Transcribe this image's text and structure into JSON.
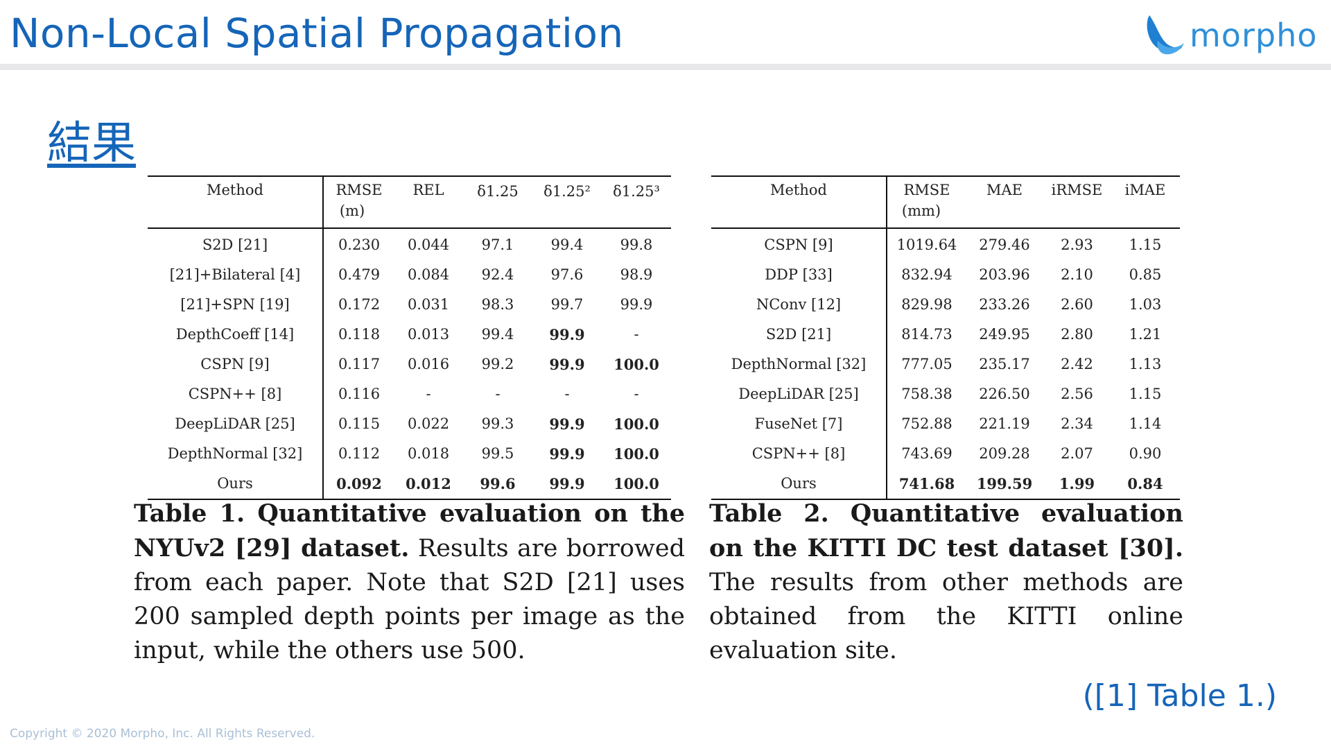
{
  "slide": {
    "title": "Non-Local Spatial Propagation",
    "logo_text": "morpho",
    "section_heading": "結果",
    "reference": "([1] Table 1.)",
    "copyright": "Copyright © 2020 Morpho, Inc. All Rights Reserved."
  },
  "colors": {
    "title": "#1565b8",
    "logo": "#2f8fd8",
    "rule": "#e8e8ea",
    "copyright": "#a9bfd6"
  },
  "table1": {
    "header": {
      "method": "Method",
      "rmse": "RMSE",
      "rmse_unit": "(m)",
      "rel": "REL",
      "d1": "δ1.25",
      "d2": "δ1.25²",
      "d3": "δ1.25³"
    },
    "rows": [
      {
        "method": "S2D [21]",
        "rmse": "0.230",
        "rel": "0.044",
        "d1": "97.1",
        "d2": "99.4",
        "d3": "99.8"
      },
      {
        "method": "[21]+Bilateral [4]",
        "rmse": "0.479",
        "rel": "0.084",
        "d1": "92.4",
        "d2": "97.6",
        "d3": "98.9"
      },
      {
        "method": "[21]+SPN [19]",
        "rmse": "0.172",
        "rel": "0.031",
        "d1": "98.3",
        "d2": "99.7",
        "d3": "99.9"
      },
      {
        "method": "DepthCoeff [14]",
        "rmse": "0.118",
        "rel": "0.013",
        "d1": "99.4",
        "d2": "99.9",
        "d3": "-"
      },
      {
        "method": "CSPN [9]",
        "rmse": "0.117",
        "rel": "0.016",
        "d1": "99.2",
        "d2": "99.9",
        "d3": "100.0"
      },
      {
        "method": "CSPN++ [8]",
        "rmse": "0.116",
        "rel": "-",
        "d1": "-",
        "d2": "-",
        "d3": "-"
      },
      {
        "method": "DeepLiDAR [25]",
        "rmse": "0.115",
        "rel": "0.022",
        "d1": "99.3",
        "d2": "99.9",
        "d3": "100.0"
      },
      {
        "method": "DepthNormal [32]",
        "rmse": "0.112",
        "rel": "0.018",
        "d1": "99.5",
        "d2": "99.9",
        "d3": "100.0"
      },
      {
        "method": "Ours",
        "rmse": "0.092",
        "rel": "0.012",
        "d1": "99.6",
        "d2": "99.9",
        "d3": "100.0"
      }
    ],
    "caption_lead": "Table 1. Quantitative evaluation on the NYUv2 [29] dataset.",
    "caption_body": "Results are borrowed from each paper. Note that S2D [21] uses 200 sampled depth points per image as the input, while the others use 500."
  },
  "table2": {
    "header": {
      "method": "Method",
      "rmse": "RMSE",
      "rmse_unit": "(mm)",
      "mae": "MAE",
      "irmse": "iRMSE",
      "imae": "iMAE"
    },
    "rows": [
      {
        "method": "CSPN [9]",
        "rmse": "1019.64",
        "mae": "279.46",
        "irmse": "2.93",
        "imae": "1.15"
      },
      {
        "method": "DDP [33]",
        "rmse": "832.94",
        "mae": "203.96",
        "irmse": "2.10",
        "imae": "0.85"
      },
      {
        "method": "NConv [12]",
        "rmse": "829.98",
        "mae": "233.26",
        "irmse": "2.60",
        "imae": "1.03"
      },
      {
        "method": "S2D [21]",
        "rmse": "814.73",
        "mae": "249.95",
        "irmse": "2.80",
        "imae": "1.21"
      },
      {
        "method": "DepthNormal [32]",
        "rmse": "777.05",
        "mae": "235.17",
        "irmse": "2.42",
        "imae": "1.13"
      },
      {
        "method": "DeepLiDAR [25]",
        "rmse": "758.38",
        "mae": "226.50",
        "irmse": "2.56",
        "imae": "1.15"
      },
      {
        "method": "FuseNet [7]",
        "rmse": "752.88",
        "mae": "221.19",
        "irmse": "2.34",
        "imae": "1.14"
      },
      {
        "method": "CSPN++ [8]",
        "rmse": "743.69",
        "mae": "209.28",
        "irmse": "2.07",
        "imae": "0.90"
      },
      {
        "method": "Ours",
        "rmse": "741.68",
        "mae": "199.59",
        "irmse": "1.99",
        "imae": "0.84"
      }
    ],
    "caption_lead": "Table 2. Quantitative evaluation on the KITTI DC test dataset [30].",
    "caption_body": "The results from other methods are obtained from the KITTI online evaluation site."
  }
}
